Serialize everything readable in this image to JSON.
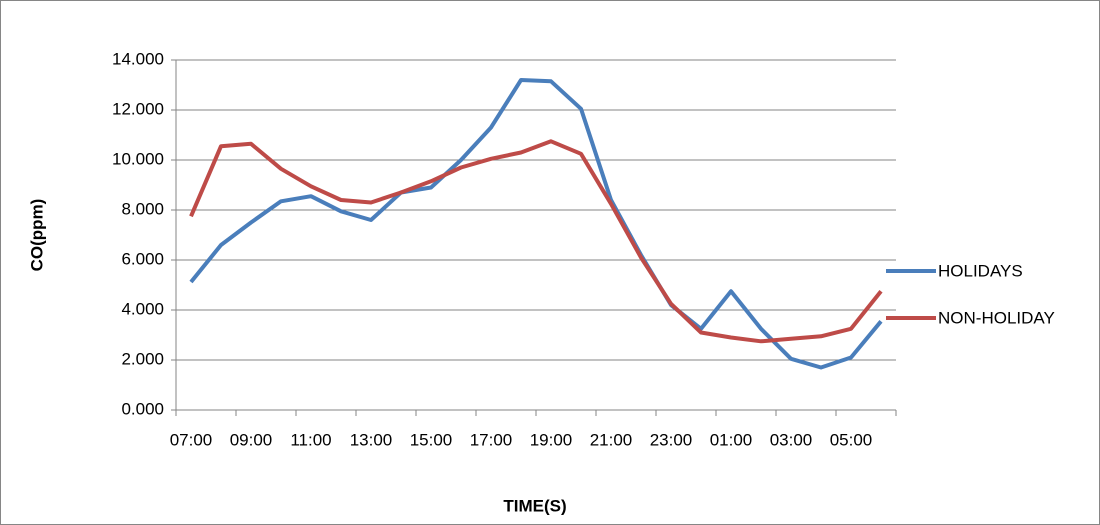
{
  "chart_data": {
    "type": "line",
    "y_label": "CO(ppm)",
    "x_label": "TIME(S)",
    "categories": [
      "07:00",
      null,
      "09:00",
      null,
      "11:00",
      null,
      "13:00",
      null,
      "15:00",
      null,
      "17:00",
      null,
      "19:00",
      null,
      "21:00",
      null,
      "23:00",
      null,
      "01:00",
      null,
      "03:00",
      null,
      "05:00",
      null
    ],
    "series": [
      {
        "name": "HOLIDAYS",
        "color": "#4a7ebb",
        "values": [
          5.12,
          6.6,
          7.5,
          8.35,
          8.55,
          7.95,
          7.6,
          8.7,
          8.9,
          10.0,
          11.3,
          13.2,
          13.15,
          12.05,
          8.4,
          6.2,
          4.2,
          3.25,
          4.75,
          3.25,
          2.05,
          1.7,
          2.1,
          3.55
        ]
      },
      {
        "name": "NON-HOLIDAY",
        "color": "#be4b48",
        "values": [
          7.75,
          10.55,
          10.65,
          9.65,
          8.95,
          8.4,
          8.3,
          8.7,
          9.15,
          9.7,
          10.05,
          10.3,
          10.75,
          10.25,
          8.25,
          6.1,
          4.25,
          3.1,
          2.9,
          2.75,
          2.85,
          2.95,
          3.25,
          4.75
        ]
      }
    ],
    "ylim": [
      0,
      14
    ],
    "yticks": [
      {
        "value": 0,
        "label": "0.000"
      },
      {
        "value": 2,
        "label": "2.000"
      },
      {
        "value": 4,
        "label": "4.000"
      },
      {
        "value": 6,
        "label": "6.000"
      },
      {
        "value": 8,
        "label": "8.000"
      },
      {
        "value": 10,
        "label": "10.000"
      },
      {
        "value": 12,
        "label": "12.000"
      },
      {
        "value": 14,
        "label": "14.000"
      }
    ],
    "grid": true,
    "legend": "right"
  }
}
